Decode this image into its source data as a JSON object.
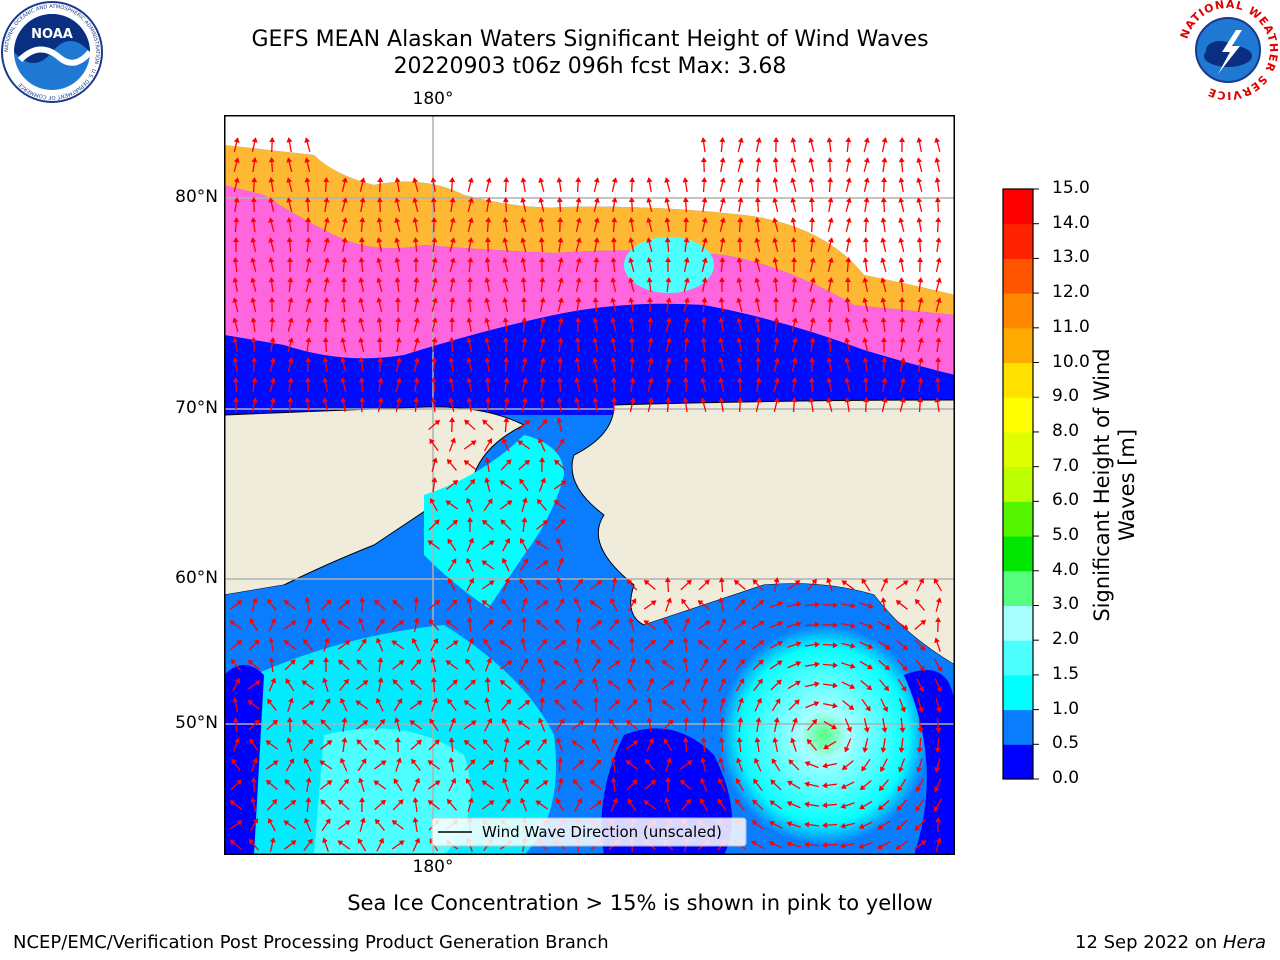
{
  "title": {
    "line1": "GEFS MEAN Alaskan Waters Significant Height of Wind Waves",
    "line2": "20220903 t06z 096h fcst   Max: 3.68"
  },
  "logos": {
    "left": {
      "icon": "noaa-logo",
      "text": "NOAA",
      "ring": "NATIONAL OCEANIC AND ATMOSPHERIC ADMINISTRATION · U.S. DEPARTMENT OF COMMERCE"
    },
    "right": {
      "icon": "nws-logo",
      "ring": "NATIONAL WEATHER SERVICE"
    }
  },
  "map": {
    "lat_labels": [
      "80°N",
      "70°N",
      "60°N",
      "50°N"
    ],
    "lon_label_top": "180°",
    "lon_label_bottom": "180°",
    "legend_label": "Wind Wave Direction (unscaled)",
    "colors": {
      "land": "#efecdc",
      "no_data": "#ffffff",
      "arrow": "#ff0000",
      "grid": "#b0b0b0"
    }
  },
  "colorbar": {
    "label": "Significant Height of Wind Waves [m]",
    "label_line1": "Significant Height of Wind",
    "label_line2": "Waves [m]",
    "ticks": [
      "0.0",
      "0.5",
      "1.0",
      "1.5",
      "2.0",
      "3.0",
      "4.0",
      "5.0",
      "6.0",
      "7.0",
      "8.0",
      "9.0",
      "10.0",
      "11.0",
      "12.0",
      "13.0",
      "14.0",
      "15.0"
    ],
    "colors": [
      "#0000ff",
      "#0a7dff",
      "#00ffff",
      "#4effff",
      "#a8ffff",
      "#57ff80",
      "#00e600",
      "#55f500",
      "#bbff00",
      "#deff00",
      "#ffff00",
      "#ffe100",
      "#ffaa00",
      "#ff8800",
      "#ff5500",
      "#ff2200",
      "#ff0000"
    ]
  },
  "caption": "Sea Ice Concentration > 15% is shown in pink to yellow",
  "footer": {
    "left": "NCEP/EMC/Verification Post Processing Product Generation Branch",
    "right_date": "12 Sep 2022 on ",
    "right_host": "Hera"
  }
}
